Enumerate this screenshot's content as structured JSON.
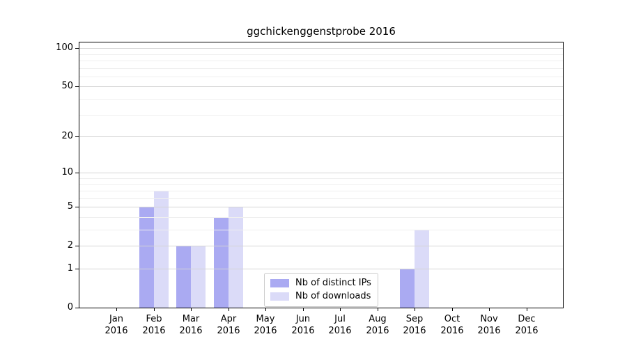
{
  "title": "ggchickenggenstprobe 2016",
  "chart_data": {
    "type": "bar",
    "title": "ggchickenggenstprobe 2016",
    "x_tick_months": [
      "Jan",
      "Feb",
      "Mar",
      "Apr",
      "May",
      "Jun",
      "Jul",
      "Aug",
      "Sep",
      "Oct",
      "Nov",
      "Dec"
    ],
    "x_tick_year": "2016",
    "categories": [
      "Jan 2016",
      "Feb 2016",
      "Mar 2016",
      "Apr 2016",
      "May 2016",
      "Jun 2016",
      "Jul 2016",
      "Aug 2016",
      "Sep 2016",
      "Oct 2016",
      "Nov 2016",
      "Dec 2016"
    ],
    "series": [
      {
        "name": "Nb of distinct IPs",
        "color": "#aaaaf2",
        "values": [
          0,
          5,
          2,
          4,
          0,
          0,
          0,
          0,
          1,
          0,
          0,
          0
        ]
      },
      {
        "name": "Nb of downloads",
        "color": "#dbdbf8",
        "values": [
          0,
          7,
          2,
          5,
          0,
          0,
          0,
          0,
          3,
          0,
          0,
          0
        ]
      }
    ],
    "y_scale": "log10(1+v)",
    "y_ticks_major": [
      0,
      1,
      2,
      5,
      10,
      20,
      50,
      100
    ],
    "y_ticks_minor": [
      3,
      4,
      6,
      7,
      8,
      9,
      30,
      40,
      60,
      70,
      80,
      90
    ],
    "ylim": [
      0,
      113
    ],
    "xlabel": "",
    "ylabel": "",
    "grid": "on",
    "legend_position": "lower center",
    "colors": {
      "grid_major": "#d4d4d4",
      "grid_minor": "#efefef",
      "axis": "#000000",
      "background": "#ffffff"
    }
  },
  "legend": {
    "items": [
      {
        "label": "Nb of distinct IPs",
        "color": "#aaaaf2"
      },
      {
        "label": "Nb of downloads",
        "color": "#dbdbf8"
      }
    ]
  }
}
